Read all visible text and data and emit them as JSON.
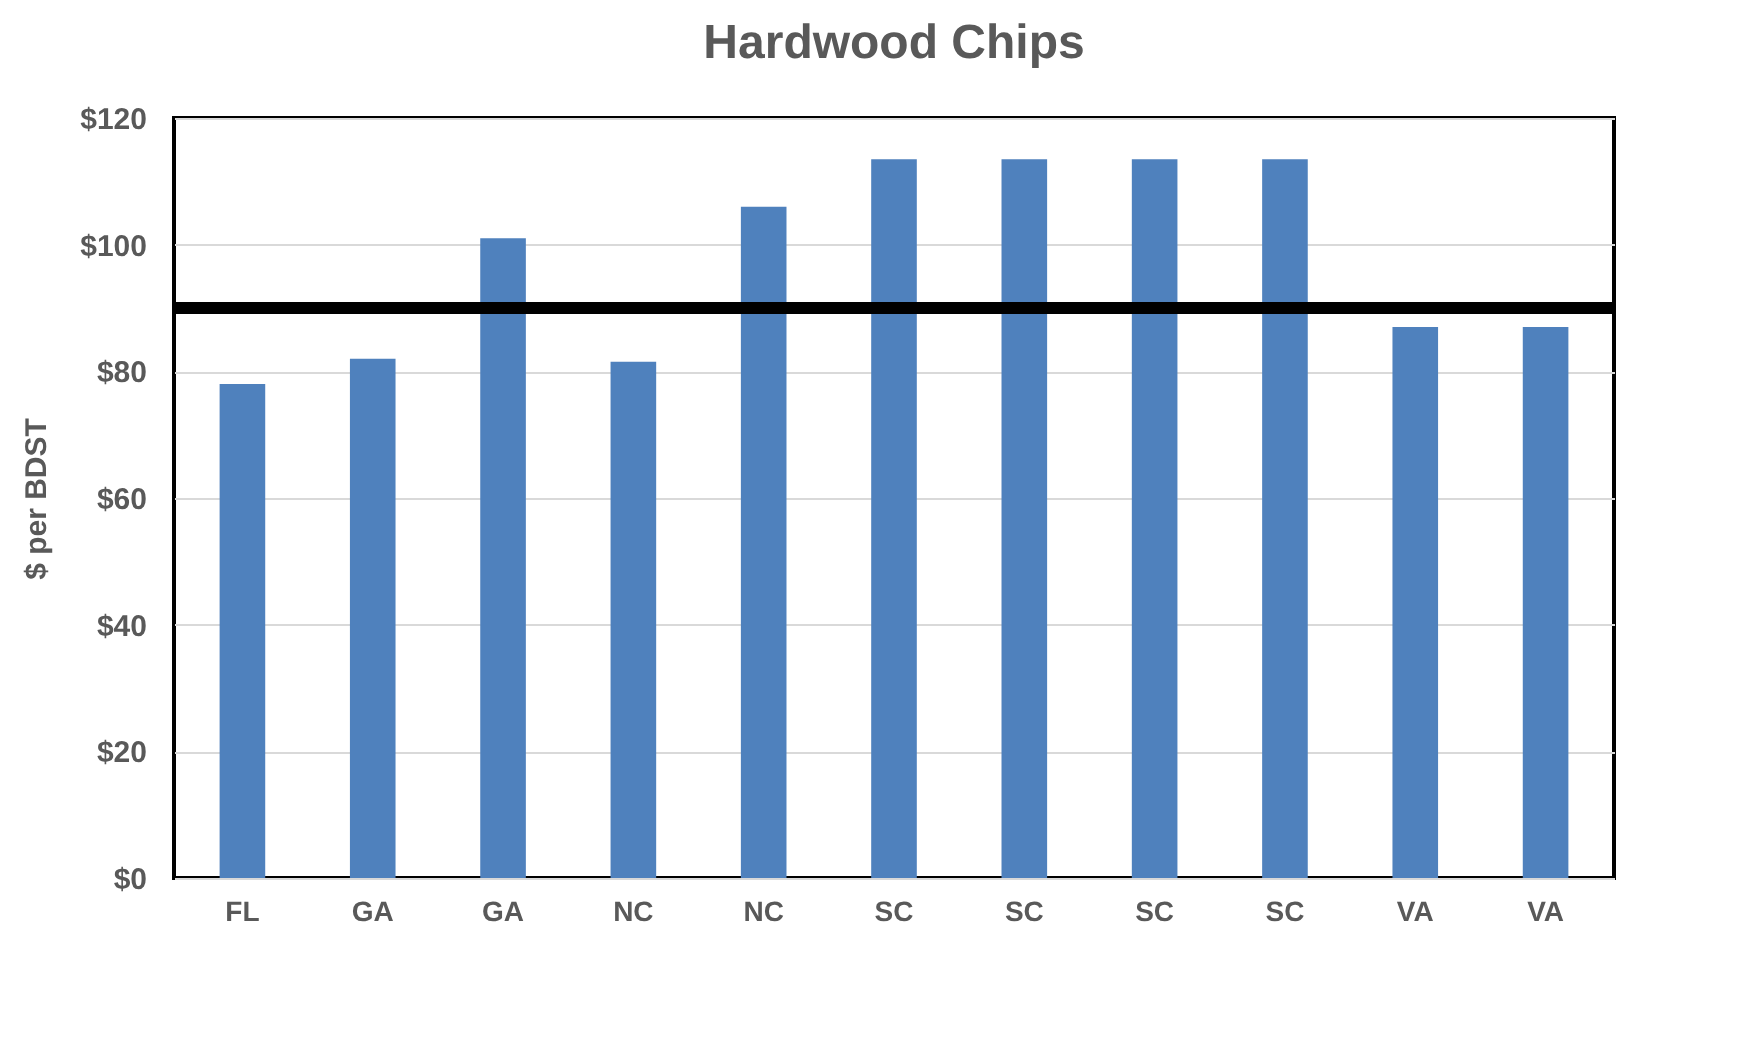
{
  "chart_data": {
    "type": "bar",
    "title": "Hardwood Chips",
    "ylabel": "$ per BDST",
    "categories": [
      "FL",
      "GA",
      "GA",
      "NC",
      "NC",
      "SC",
      "SC",
      "SC",
      "SC",
      "VA",
      "VA"
    ],
    "series": [
      {
        "color": "#4f81bd",
        "values": [
          78,
          82,
          101,
          81.5,
          106,
          113.5,
          113.5,
          113.5,
          113.5,
          87,
          87
        ]
      }
    ],
    "ylim": [
      0,
      120
    ],
    "yticks": [
      {
        "value": 0,
        "label": "$0"
      },
      {
        "value": 20,
        "label": "$20"
      },
      {
        "value": 40,
        "label": "$40"
      },
      {
        "value": 60,
        "label": "$60"
      },
      {
        "value": 80,
        "label": "$80"
      },
      {
        "value": 100,
        "label": "$100"
      },
      {
        "value": 120,
        "label": "$120"
      }
    ],
    "grid": "y",
    "ref_lines": [
      {
        "axis": "y",
        "value": 90,
        "color": "#000000"
      }
    ]
  }
}
